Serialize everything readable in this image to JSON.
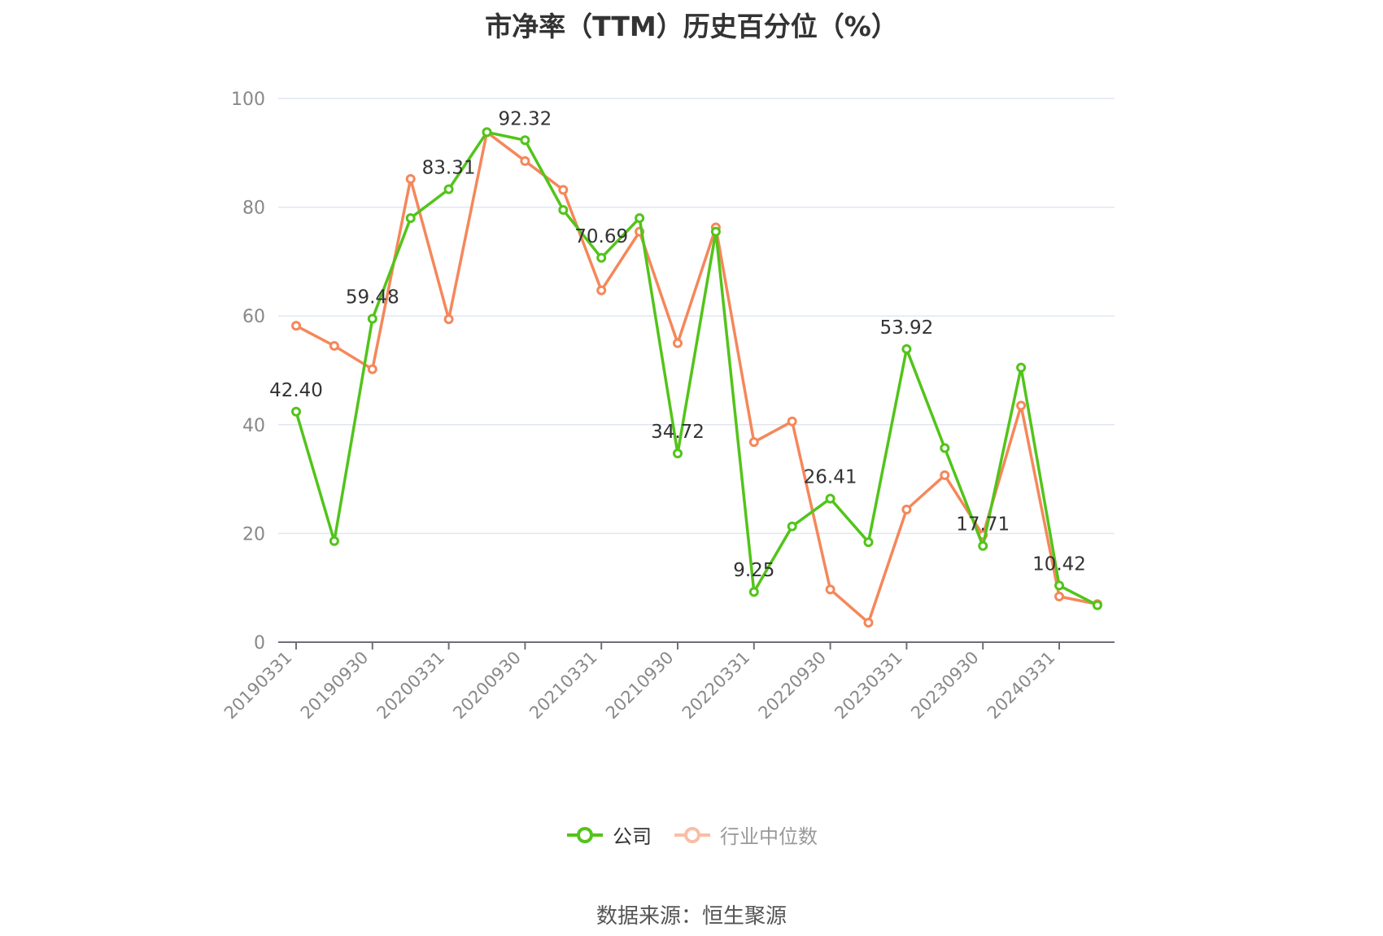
{
  "chart_data": {
    "type": "line",
    "title": "市净率（TTM）历史百分位（%）",
    "x": [
      "20190331",
      "20190630",
      "20190930",
      "20191231",
      "20200331",
      "20200630",
      "20200930",
      "20201231",
      "20210331",
      "20210630",
      "20210930",
      "20211231",
      "20220331",
      "20220630",
      "20220930",
      "20221231",
      "20230331",
      "20230630",
      "20230930",
      "20231231",
      "20240331",
      "20240630"
    ],
    "x_tick_labels": [
      "20190331",
      "20190930",
      "20200331",
      "20200930",
      "20210331",
      "20210930",
      "20220331",
      "20220930",
      "20230331",
      "20230930",
      "20240331"
    ],
    "ylim": [
      0,
      100
    ],
    "y_ticks": [
      0,
      20,
      40,
      60,
      80,
      100
    ],
    "grid": true,
    "legend_position": "bottom",
    "series": [
      {
        "name": "公司",
        "color": "#52c41a",
        "values": [
          42.4,
          18.6,
          59.48,
          78.0,
          83.31,
          93.8,
          92.32,
          79.5,
          70.69,
          78.0,
          34.72,
          75.5,
          9.25,
          21.3,
          26.41,
          18.4,
          53.92,
          35.7,
          17.71,
          50.5,
          10.42,
          6.8
        ],
        "data_labels": {
          "0": "42.40",
          "2": "59.48",
          "4": "83.31",
          "6": "92.32",
          "8": "70.69",
          "10": "34.72",
          "12": "9.25",
          "14": "26.41",
          "16": "53.92",
          "18": "17.71",
          "20": "10.42"
        }
      },
      {
        "name": "行业中位数",
        "color": "#f5875a",
        "legend_color": "#f9bea6",
        "values": [
          58.2,
          54.5,
          50.2,
          85.2,
          59.4,
          93.8,
          88.5,
          83.2,
          64.7,
          75.5,
          55.0,
          76.3,
          36.8,
          40.6,
          9.7,
          3.6,
          24.4,
          30.7,
          19.7,
          43.5,
          8.4,
          7.0
        ]
      }
    ]
  },
  "source_text": "数据来源：恒生聚源"
}
